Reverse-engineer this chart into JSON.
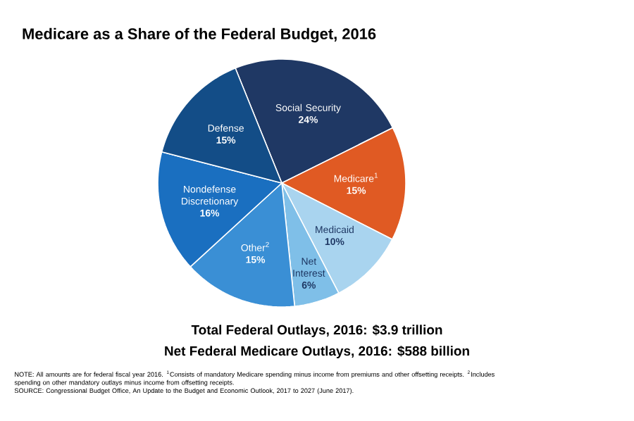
{
  "chart_data": {
    "type": "pie",
    "title": "Medicare as a Share of the Federal Budget, 2016",
    "categories": [
      "Social Security",
      "Medicare$^{1}$",
      "Medicaid",
      "Net Interest",
      "Other$^{2}$",
      "Nondefense Discretionary",
      "Defense"
    ],
    "values": [
      24,
      15,
      10,
      6,
      15,
      16,
      15
    ],
    "value_labels": [
      "24%",
      "15%",
      "10%",
      "6%",
      "15%",
      "16%",
      "15%"
    ],
    "colors": [
      "#1f3864",
      "#e05a23",
      "#a9d4ef",
      "#7fbfe8",
      "#3a8fd5",
      "#1a6fc0",
      "#134d87"
    ],
    "annotations": [
      "Total Federal Outlays, 2016: $3.9 trillion",
      "Net Federal Medicare Outlays, 2016: $588 billion",
      "NOTE: All amounts are for federal fiscal year 2016. $^{1}$Consists of mandatory Medicare spending minus income from premiums and other offsetting receipts. $^{2}$Includes spending on other mandatory outlays minus income from offsetting receipts.",
      "SOURCE: Congressional Budget Office, An Update to the Budget and Economic Outlook, 2017 to 2027 (June 2017)."
    ]
  }
}
